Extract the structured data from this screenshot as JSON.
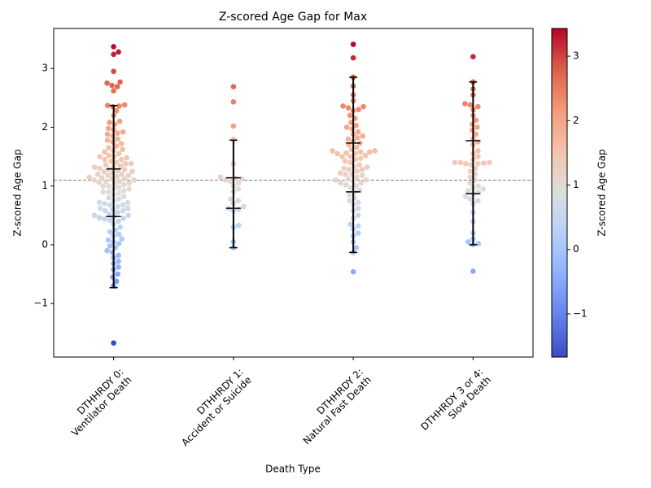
{
  "chart_data": {
    "type": "swarm",
    "title": "Z-scored Age Gap for Max",
    "x_label": "Death Type",
    "y_label": "Z-scored Age Gap",
    "categories": [
      "DTHHRDY 0:\nVentilator Death",
      "DTHHRDY 1:\nAccident or Suicide",
      "DTHHRDY 2:\nNatural Fast Death",
      "DTHHRDY 3 or 4:\nSlow Death"
    ],
    "values": [
      [
        3.37,
        3.28,
        3.24,
        2.95,
        2.77,
        2.75,
        2.71,
        2.69,
        2.62,
        2.38,
        2.37,
        2.36,
        2.35,
        2.28,
        2.2,
        2.1,
        2.08,
        2.05,
        1.98,
        1.96,
        1.92,
        1.9,
        1.88,
        1.85,
        1.8,
        1.78,
        1.75,
        1.72,
        1.68,
        1.65,
        1.62,
        1.6,
        1.58,
        1.55,
        1.52,
        1.5,
        1.5,
        1.48,
        1.45,
        1.42,
        1.4,
        1.38,
        1.36,
        1.34,
        1.32,
        1.3,
        1.28,
        1.26,
        1.24,
        1.22,
        1.2,
        1.18,
        1.16,
        1.14,
        1.12,
        1.1,
        1.08,
        1.06,
        1.04,
        1.02,
        1.0,
        0.98,
        0.95,
        0.92,
        0.9,
        0.88,
        0.85,
        0.82,
        0.8,
        0.78,
        0.75,
        0.72,
        0.7,
        0.68,
        0.65,
        0.62,
        0.6,
        0.58,
        0.55,
        0.52,
        0.5,
        0.48,
        0.45,
        0.42,
        0.4,
        0.35,
        0.3,
        0.25,
        0.22,
        0.18,
        0.15,
        0.1,
        0.08,
        0.05,
        0.02,
        -0.02,
        -0.05,
        -0.1,
        -0.13,
        -0.18,
        -0.22,
        -0.28,
        -0.32,
        -0.38,
        -0.42,
        -0.5,
        -0.55,
        -0.62,
        -0.7,
        -1.67,
        1.25,
        1.2,
        1.15,
        1.1,
        1.05,
        1.0,
        1.28,
        1.18,
        1.12,
        1.08,
        0.95,
        0.9,
        0.72,
        0.68,
        0.62,
        0.58,
        0.5,
        0.46,
        0.44,
        1.45,
        1.38,
        1.32
      ],
      [
        2.69,
        2.43,
        2.02,
        1.79,
        1.38,
        1.15,
        1.13,
        1.12,
        1.1,
        1.08,
        1.05,
        1.0,
        0.95,
        0.9,
        0.78,
        0.75,
        0.7,
        0.65,
        0.62,
        0.6,
        0.58,
        0.33,
        0.3,
        0.05,
        -0.05
      ],
      [
        3.41,
        3.18,
        2.85,
        2.7,
        2.55,
        2.45,
        2.36,
        2.35,
        2.33,
        2.3,
        2.28,
        2.2,
        2.15,
        2.08,
        2.03,
        2.0,
        1.97,
        1.92,
        1.88,
        1.85,
        1.82,
        1.8,
        1.76,
        1.73,
        1.7,
        1.66,
        1.62,
        1.6,
        1.58,
        1.55,
        1.52,
        1.5,
        1.47,
        1.45,
        1.42,
        1.4,
        1.36,
        1.33,
        1.3,
        1.28,
        1.25,
        1.22,
        1.2,
        1.18,
        1.15,
        1.12,
        1.1,
        1.08,
        1.05,
        1.02,
        1.0,
        0.97,
        0.93,
        0.9,
        0.85,
        0.8,
        0.75,
        0.72,
        0.68,
        0.62,
        0.58,
        0.5,
        0.45,
        0.35,
        0.32,
        0.27,
        0.2,
        0.15,
        0.05,
        -0.05,
        -0.13,
        -0.46,
        1.58,
        1.55,
        1.5,
        1.32,
        1.28,
        1.2,
        1.1,
        1.05,
        1.6,
        1.56
      ],
      [
        3.2,
        2.77,
        2.65,
        2.55,
        2.4,
        2.38,
        2.35,
        2.3,
        2.2,
        2.12,
        2.05,
        2.0,
        1.95,
        1.88,
        1.8,
        1.75,
        1.7,
        1.6,
        1.55,
        1.5,
        1.45,
        1.4,
        1.4,
        1.38,
        1.38,
        1.36,
        1.3,
        1.25,
        1.2,
        1.15,
        1.1,
        1.05,
        1.0,
        0.97,
        0.95,
        0.92,
        0.9,
        0.87,
        0.82,
        0.78,
        0.75,
        0.7,
        0.55,
        0.4,
        0.2,
        0.1,
        0.05,
        0.02,
        0.0,
        -0.45,
        1.4,
        1.39
      ]
    ],
    "whiskers": [
      [
        -0.73,
        0.48,
        1.29,
        2.37
      ],
      [
        -0.05,
        0.62,
        1.14,
        1.78
      ],
      [
        -0.13,
        0.9,
        1.73,
        2.85
      ],
      [
        0.0,
        0.87,
        1.77,
        2.77
      ]
    ],
    "reference_line": 1.1,
    "ylim": [
      -1.91,
      3.68
    ],
    "yticks": [
      {
        "value": -1,
        "label": "−1"
      },
      0,
      1,
      2,
      3
    ],
    "colorbar": {
      "label": "Z-scored Age Gap",
      "clim": [
        -1.67,
        3.43
      ],
      "ticks": [
        {
          "value": -1,
          "label": "−1"
        },
        0,
        1,
        2,
        3
      ],
      "colormap": "coolwarm"
    }
  }
}
